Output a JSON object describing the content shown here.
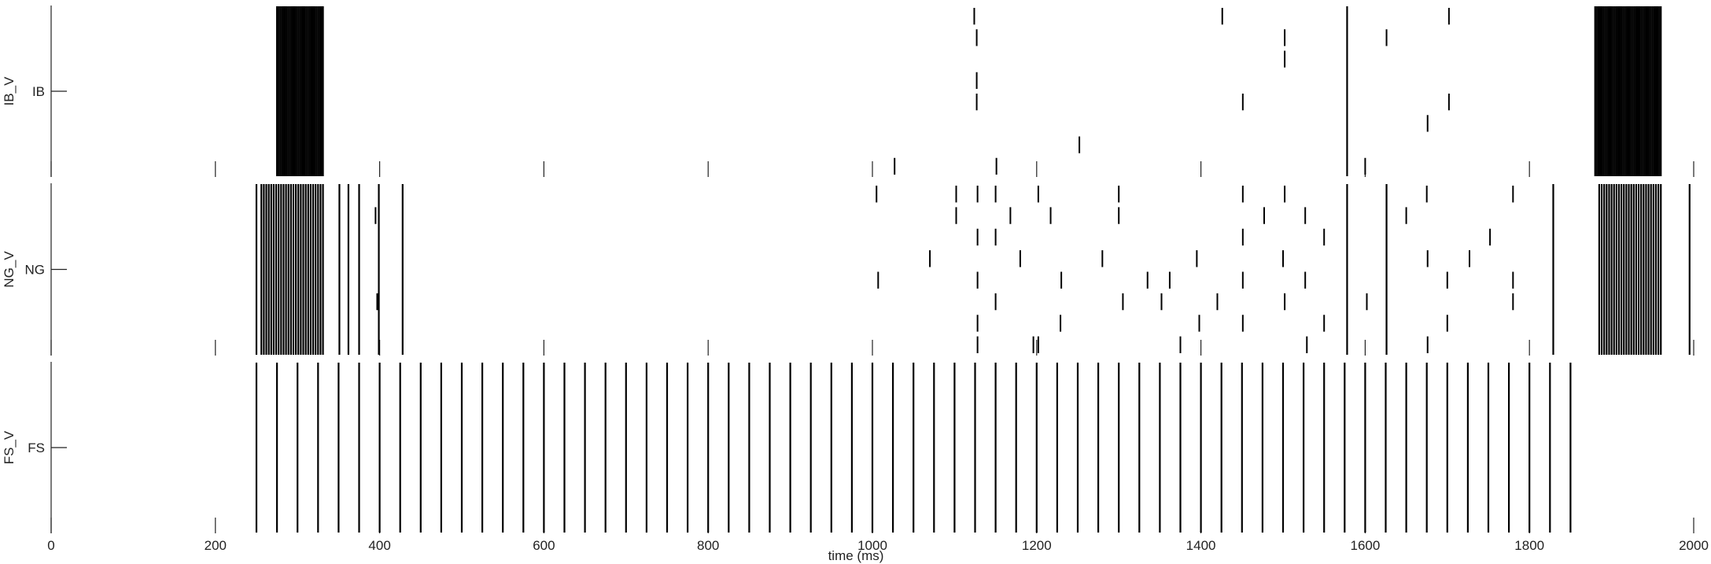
{
  "chart_data": {
    "type": "raster",
    "x_label": "time (ms)",
    "xlim": [
      0,
      2000
    ],
    "xticks": [
      0,
      200,
      400,
      600,
      800,
      1000,
      1200,
      1400,
      1600,
      1800,
      2000
    ],
    "rows": 8,
    "color": "#000000",
    "panels": [
      {
        "name": "IB_V",
        "tick_label": "IB",
        "spikes": [
          275,
          277,
          279,
          281,
          283,
          285,
          287,
          289,
          291,
          293,
          295,
          297,
          299,
          301,
          303,
          305,
          307,
          309,
          311,
          313,
          315,
          317,
          319,
          321,
          323,
          325,
          327,
          329,
          331,
          1578,
          1880,
          1882,
          1884,
          1886,
          1888,
          1890,
          1892,
          1894,
          1896,
          1898,
          1900,
          1902,
          1904,
          1906,
          1908,
          1910,
          1912,
          1914,
          1916,
          1918,
          1920,
          1922,
          1924,
          1926,
          1928,
          1930,
          1932,
          1934,
          1936,
          1938,
          1940,
          1942,
          1944,
          1946,
          1948,
          1950,
          1952,
          1954,
          1956,
          1958,
          1960
        ],
        "events": [
          [
            1124,
            7
          ],
          [
            1127,
            6
          ],
          [
            1127,
            4
          ],
          [
            1127,
            3
          ],
          [
            1426,
            7
          ],
          [
            1502,
            6
          ],
          [
            1502,
            5
          ],
          [
            1626,
            6
          ],
          [
            1702,
            7
          ],
          [
            1702,
            3
          ],
          [
            1676,
            2
          ],
          [
            1252,
            1
          ],
          [
            1151,
            0
          ],
          [
            1027,
            0
          ],
          [
            1451,
            3
          ],
          [
            1600,
            0
          ]
        ]
      },
      {
        "name": "NG_V",
        "tick_label": "NG",
        "spikes": [
          250,
          256,
          259,
          262,
          265,
          268,
          271,
          274,
          277,
          280,
          283,
          286,
          289,
          292,
          295,
          298,
          301,
          304,
          307,
          310,
          313,
          316,
          319,
          322,
          325,
          328,
          331,
          351,
          362,
          375,
          399,
          428,
          1578,
          1626,
          1829,
          1885,
          1888,
          1891,
          1894,
          1897,
          1900,
          1903,
          1906,
          1909,
          1912,
          1915,
          1918,
          1921,
          1924,
          1927,
          1930,
          1933,
          1936,
          1939,
          1942,
          1945,
          1948,
          1951,
          1954,
          1957,
          1960,
          1995
        ],
        "events": [
          [
            1102,
            7
          ],
          [
            1102,
            6
          ],
          [
            1070,
            4
          ],
          [
            1128,
            7
          ],
          [
            1128,
            5
          ],
          [
            1128,
            3
          ],
          [
            1128,
            1
          ],
          [
            1128,
            0
          ],
          [
            1150,
            7
          ],
          [
            1150,
            5
          ],
          [
            1150,
            2
          ],
          [
            1168,
            6
          ],
          [
            1180,
            4
          ],
          [
            1202,
            7
          ],
          [
            1202,
            0
          ],
          [
            1217,
            6
          ],
          [
            1230,
            3
          ],
          [
            1229,
            1
          ],
          [
            1300,
            7
          ],
          [
            1300,
            6
          ],
          [
            1305,
            2
          ],
          [
            1280,
            4
          ],
          [
            1335,
            3
          ],
          [
            1362,
            3
          ],
          [
            1352,
            2
          ],
          [
            1375,
            0
          ],
          [
            1395,
            4
          ],
          [
            1398,
            1
          ],
          [
            1420,
            2
          ],
          [
            1451,
            7
          ],
          [
            1451,
            5
          ],
          [
            1451,
            3
          ],
          [
            1451,
            1
          ],
          [
            1477,
            6
          ],
          [
            1502,
            7
          ],
          [
            1500,
            4
          ],
          [
            1502,
            2
          ],
          [
            1527,
            6
          ],
          [
            1527,
            3
          ],
          [
            1529,
            0
          ],
          [
            1550,
            5
          ],
          [
            1550,
            1
          ],
          [
            1602,
            2
          ],
          [
            1650,
            6
          ],
          [
            1675,
            7
          ],
          [
            1676,
            4
          ],
          [
            1676,
            0
          ],
          [
            1700,
            3
          ],
          [
            1700,
            1
          ],
          [
            1727,
            4
          ],
          [
            1752,
            5
          ],
          [
            1780,
            7
          ],
          [
            1780,
            3
          ],
          [
            1780,
            2
          ],
          [
            1005,
            7
          ],
          [
            1007,
            3
          ],
          [
            395,
            6
          ],
          [
            397,
            2
          ],
          [
            1196,
            0
          ]
        ]
      },
      {
        "name": "FS_V",
        "tick_label": "FS",
        "spikes": [
          250,
          275,
          300,
          325,
          350,
          375,
          400,
          425,
          450,
          475,
          500,
          525,
          550,
          575,
          600,
          625,
          650,
          675,
          700,
          725,
          750,
          775,
          800,
          825,
          850,
          875,
          900,
          925,
          950,
          975,
          1000,
          1025,
          1050,
          1075,
          1100,
          1125,
          1150,
          1175,
          1200,
          1225,
          1250,
          1275,
          1300,
          1325,
          1350,
          1375,
          1400,
          1425,
          1450,
          1475,
          1500,
          1525,
          1550,
          1575,
          1600,
          1625,
          1650,
          1675,
          1700,
          1725,
          1750,
          1775,
          1800,
          1825,
          1850
        ],
        "events": []
      }
    ]
  }
}
